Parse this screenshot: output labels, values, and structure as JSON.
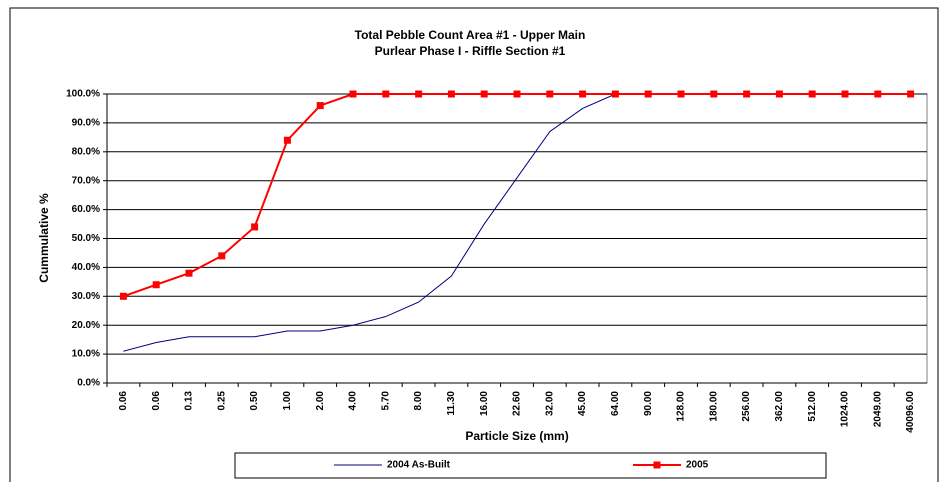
{
  "chart_data": {
    "type": "line",
    "title": "Total Pebble Count Area #1 - Upper Main",
    "subtitle": "Purlear Phase I - Riffle Section #1",
    "x_label": "Particle Size (mm)",
    "y_label": "Cummulative %",
    "categories": [
      "0.06",
      "0.06",
      "0.13",
      "0.25",
      "0.50",
      "1.00",
      "2.00",
      "4.00",
      "5.70",
      "8.00",
      "11.30",
      "16.00",
      "22.60",
      "32.00",
      "45.00",
      "64.00",
      "90.00",
      "128.00",
      "180.00",
      "256.00",
      "362.00",
      "512.00",
      "1024.00",
      "2049.00",
      "40096.00"
    ],
    "series": [
      {
        "name": "2004 As-Built",
        "color": "#000080",
        "marker": false,
        "values": [
          11,
          14,
          16,
          16,
          16,
          18,
          18,
          20,
          23,
          28,
          37,
          55,
          71,
          87,
          95,
          100,
          100,
          100,
          100,
          100,
          100,
          100,
          100,
          100,
          100
        ]
      },
      {
        "name": "2005",
        "color": "#ff0000",
        "marker": true,
        "values": [
          30,
          34,
          38,
          44,
          54,
          84,
          96,
          100,
          100,
          100,
          100,
          100,
          100,
          100,
          100,
          100,
          100,
          100,
          100,
          100,
          100,
          100,
          100,
          100,
          100
        ]
      }
    ],
    "ylim": [
      0,
      100
    ],
    "yticks": [
      {
        "value": 0,
        "label": "0.0%"
      },
      {
        "value": 10,
        "label": "10.0%"
      },
      {
        "value": 20,
        "label": "20.0%"
      },
      {
        "value": 30,
        "label": "30.0%"
      },
      {
        "value": 40,
        "label": "40.0%"
      },
      {
        "value": 50,
        "label": "50.0%"
      },
      {
        "value": 60,
        "label": "60.0%"
      },
      {
        "value": 70,
        "label": "70.0%"
      },
      {
        "value": 80,
        "label": "80.0%"
      },
      {
        "value": 90,
        "label": "90.0%"
      },
      {
        "value": 100,
        "label": "100.0%"
      }
    ],
    "grid": true,
    "legend": "bottom"
  }
}
